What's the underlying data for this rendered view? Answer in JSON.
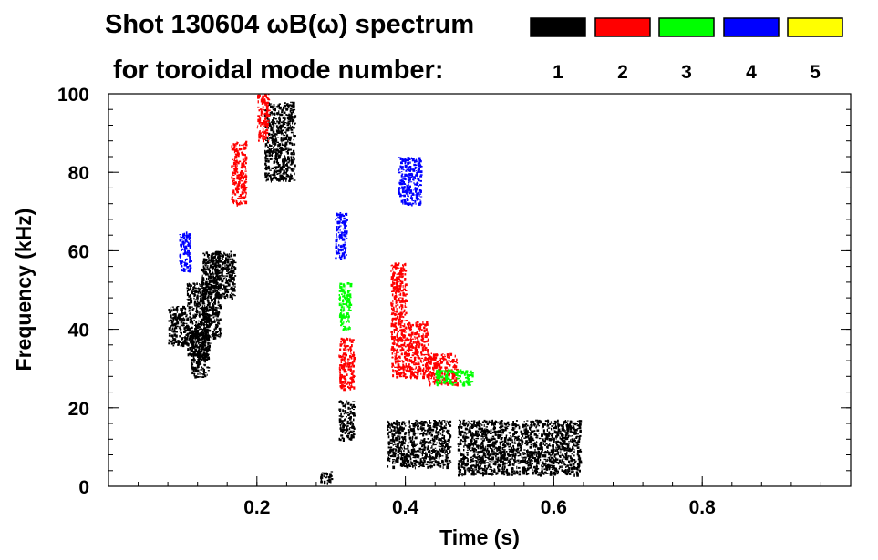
{
  "chart_data": {
    "type": "scatter",
    "title_line1": "Shot 130604 ωB(ω) spectrum",
    "title_line2": "for toroidal mode number:",
    "xlabel": "Time (s)",
    "ylabel": "Frequency (kHz)",
    "xlim": [
      0.0,
      1.0
    ],
    "ylim": [
      0,
      100
    ],
    "x_ticks": [
      0.2,
      0.4,
      0.6,
      0.8
    ],
    "x_tick_labels": [
      "0.2",
      "0.4",
      "0.6",
      "0.8"
    ],
    "x_minor_step": 0.04,
    "y_ticks": [
      0,
      20,
      40,
      60,
      80,
      100
    ],
    "y_tick_labels": [
      "0",
      "20",
      "40",
      "60",
      "80",
      "100"
    ],
    "y_minor_step": 4,
    "legend": [
      {
        "label": "1",
        "color": "#000000"
      },
      {
        "label": "2",
        "color": "#ff0000"
      },
      {
        "label": "3",
        "color": "#00ff00"
      },
      {
        "label": "4",
        "color": "#0000ff"
      },
      {
        "label": "5",
        "color": "#ffff00"
      }
    ],
    "series": [
      {
        "mode": "1",
        "color": "#000000",
        "regions": [
          {
            "t": [
              0.08,
              0.105
            ],
            "f": [
              36,
              46
            ]
          },
          {
            "t": [
              0.105,
              0.135
            ],
            "f": [
              33,
              52
            ]
          },
          {
            "t": [
              0.125,
              0.15
            ],
            "f": [
              38,
              60
            ]
          },
          {
            "t": [
              0.135,
              0.17
            ],
            "f": [
              48,
              60
            ]
          },
          {
            "t": [
              0.11,
              0.135
            ],
            "f": [
              28,
              40
            ]
          },
          {
            "t": [
              0.21,
              0.25
            ],
            "f": [
              78,
              98
            ]
          },
          {
            "t": [
              0.285,
              0.3
            ],
            "f": [
              1,
              4
            ]
          },
          {
            "t": [
              0.31,
              0.33
            ],
            "f": [
              12,
              22
            ]
          },
          {
            "t": [
              0.375,
              0.46
            ],
            "f": [
              5,
              17
            ]
          },
          {
            "t": [
              0.47,
              0.635
            ],
            "f": [
              3,
              17
            ]
          }
        ]
      },
      {
        "mode": "2",
        "color": "#ff0000",
        "regions": [
          {
            "t": [
              0.165,
              0.185
            ],
            "f": [
              72,
              88
            ]
          },
          {
            "t": [
              0.2,
              0.215
            ],
            "f": [
              88,
              100
            ]
          },
          {
            "t": [
              0.31,
              0.33
            ],
            "f": [
              25,
              38
            ]
          },
          {
            "t": [
              0.38,
              0.4
            ],
            "f": [
              28,
              57
            ]
          },
          {
            "t": [
              0.4,
              0.43
            ],
            "f": [
              28,
              42
            ]
          },
          {
            "t": [
              0.43,
              0.47
            ],
            "f": [
              26,
              34
            ]
          }
        ]
      },
      {
        "mode": "3",
        "color": "#00ff00",
        "regions": [
          {
            "t": [
              0.31,
              0.325
            ],
            "f": [
              40,
              52
            ]
          },
          {
            "t": [
              0.44,
              0.49
            ],
            "f": [
              26,
              30
            ]
          }
        ]
      },
      {
        "mode": "4",
        "color": "#0000ff",
        "regions": [
          {
            "t": [
              0.095,
              0.11
            ],
            "f": [
              55,
              65
            ]
          },
          {
            "t": [
              0.305,
              0.32
            ],
            "f": [
              58,
              70
            ]
          },
          {
            "t": [
              0.39,
              0.42
            ],
            "f": [
              72,
              84
            ]
          }
        ]
      },
      {
        "mode": "5",
        "color": "#ffff00",
        "regions": []
      }
    ]
  }
}
